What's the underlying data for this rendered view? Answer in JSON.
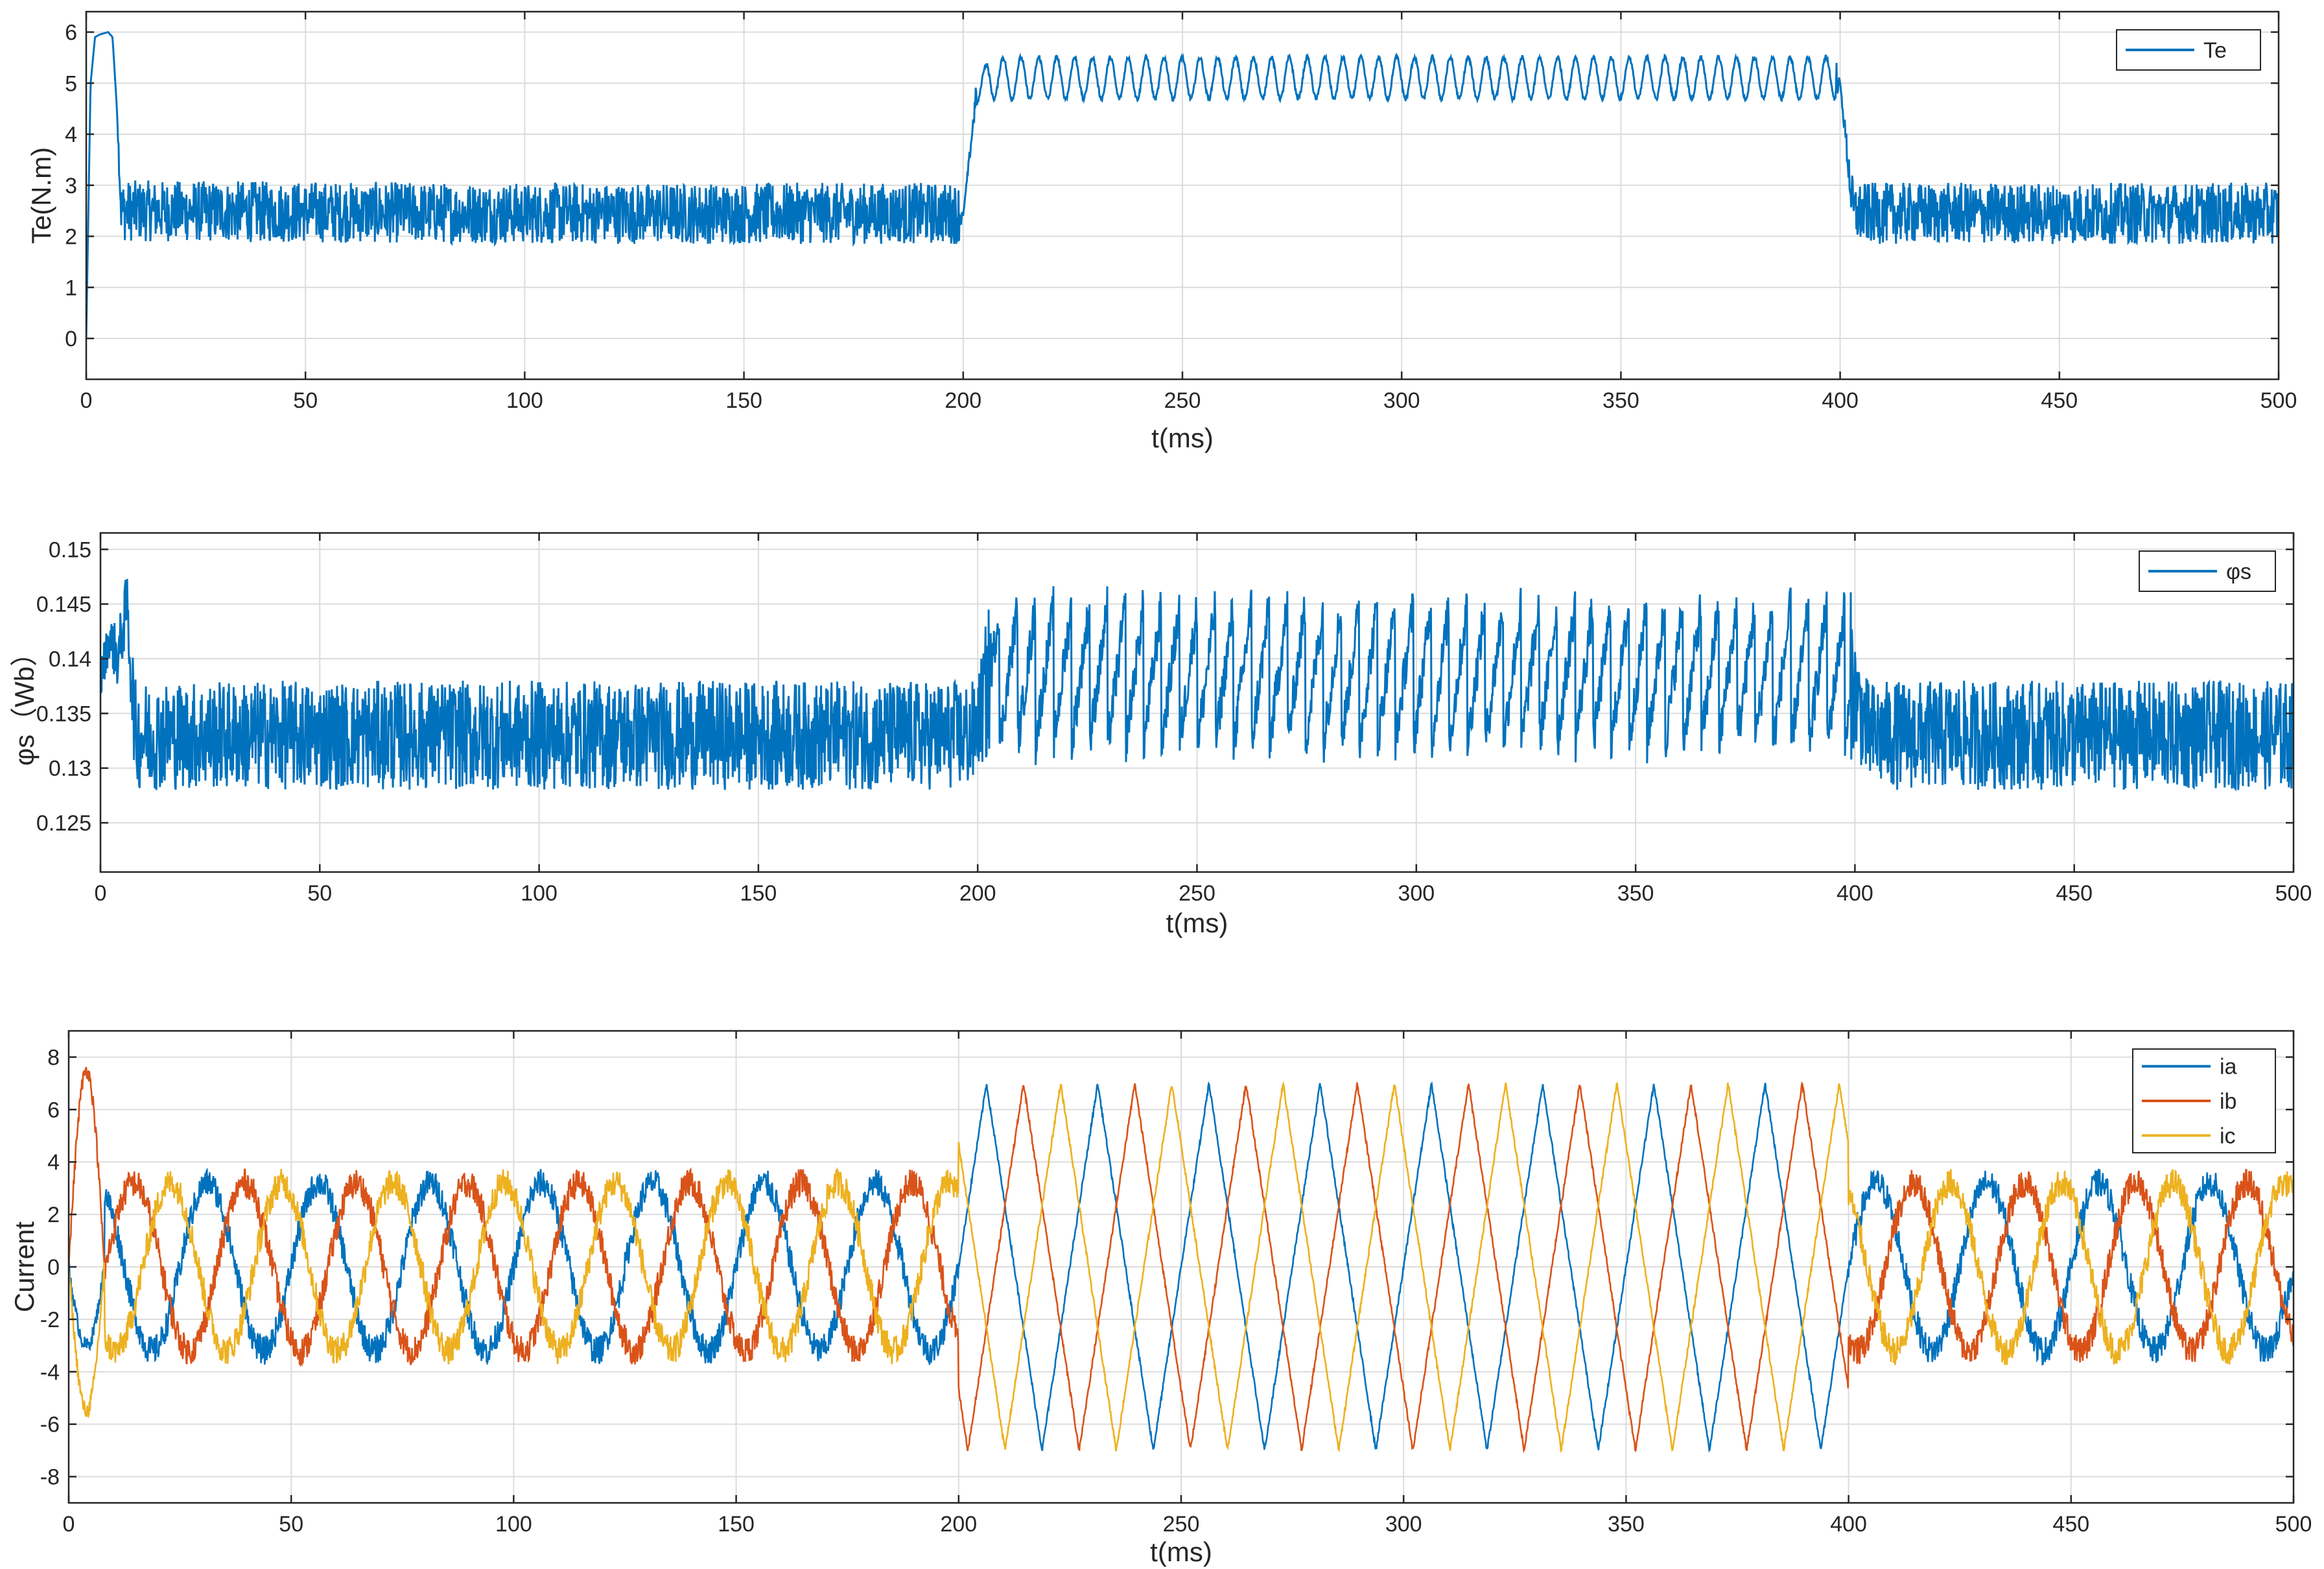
{
  "chart_data": [
    {
      "type": "line",
      "xlabel": "t(ms)",
      "ylabel": "Te(N.m)",
      "xlim": [
        0,
        500
      ],
      "ylim": [
        -0.8,
        6.4
      ],
      "xticks": [
        0,
        50,
        100,
        150,
        200,
        250,
        300,
        350,
        400,
        450,
        500
      ],
      "yticks": [
        0,
        1,
        2,
        3,
        4,
        5,
        6
      ],
      "grid": true,
      "legend_position": "top-right",
      "series": [
        {
          "name": "Te",
          "color": "#0072BD",
          "x": [
            0,
            1,
            2,
            3,
            5,
            6,
            7,
            8,
            100,
            199,
            200,
            203,
            206,
            300,
            399,
            400,
            403,
            500
          ],
          "y": [
            0,
            5.0,
            5.9,
            5.95,
            6.0,
            5.9,
            4.5,
            2.5,
            2.45,
            2.45,
            2.4,
            4.8,
            5.1,
            5.1,
            5.1,
            5.0,
            2.45,
            2.45
          ],
          "ripple_amplitude": [
            0,
            0,
            0,
            0,
            0,
            0,
            0,
            0.6,
            0.6,
            0.6,
            0,
            0.25,
            0.45,
            0.45,
            0.45,
            0,
            0.6,
            0.6
          ]
        }
      ]
    },
    {
      "type": "line",
      "xlabel": "t(ms)",
      "ylabel": "φs（Wb）",
      "xlim": [
        0,
        500
      ],
      "ylim": [
        0.1205,
        0.1515
      ],
      "xticks": [
        0,
        50,
        100,
        150,
        200,
        250,
        300,
        350,
        400,
        450,
        500
      ],
      "yticks": [
        0.125,
        0.13,
        0.135,
        0.14,
        0.145,
        0.15
      ],
      "grid": true,
      "legend_position": "top-right",
      "series": [
        {
          "name": "φs",
          "color": "#0072BD",
          "x": [
            0,
            2,
            4,
            6,
            8,
            100,
            199,
            200,
            203,
            300,
            399,
            400,
            403,
            500
          ],
          "y": [
            0.138,
            0.142,
            0.14,
            0.145,
            0.133,
            0.133,
            0.133,
            0.134,
            0.1385,
            0.1385,
            0.1385,
            0.137,
            0.133,
            0.133
          ],
          "ripple_amplitude": [
            0.002,
            0.002,
            0.003,
            0.003,
            0.005,
            0.005,
            0.005,
            0.004,
            0.008,
            0.008,
            0.008,
            0.005,
            0.005,
            0.005
          ]
        }
      ]
    },
    {
      "type": "line",
      "xlabel": "t(ms)",
      "ylabel": "Current",
      "xlim": [
        0,
        500
      ],
      "ylim": [
        -9,
        9
      ],
      "xticks": [
        0,
        50,
        100,
        150,
        200,
        250,
        300,
        350,
        400,
        450,
        500
      ],
      "yticks": [
        -8,
        -6,
        -4,
        -2,
        0,
        2,
        4,
        6,
        8
      ],
      "grid": true,
      "legend_position": "top-right",
      "phase_current": {
        "startup_end_ms": 8,
        "steady_amplitude": 3.2,
        "steady_period_ms": 25,
        "loaded_amplitude": 7.0,
        "loaded_period_ms": 25,
        "load_start_ms": 200,
        "load_end_ms": 400
      },
      "series": [
        {
          "name": "ia",
          "color": "#0072BD",
          "phase_deg": 0
        },
        {
          "name": "ib",
          "color": "#D95319",
          "phase_deg": -120
        },
        {
          "name": "ic",
          "color": "#EDB120",
          "phase_deg": 120
        }
      ]
    }
  ]
}
